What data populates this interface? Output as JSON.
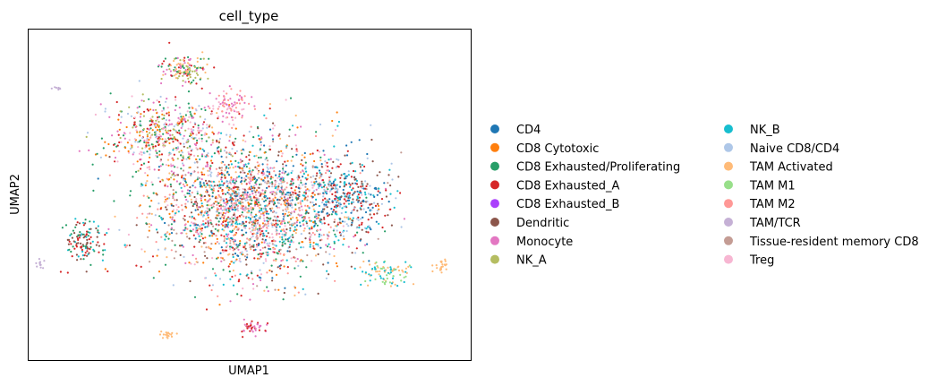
{
  "chart_data": {
    "type": "scatter",
    "title": "cell_type",
    "xlabel": "UMAP1",
    "ylabel": "UMAP2",
    "xticks": [],
    "yticks": [],
    "grid": false,
    "legend_placement": "right, two columns",
    "xlim": [
      -8,
      10
    ],
    "ylim": [
      -6,
      8
    ],
    "categories": [
      {
        "name": "CD4",
        "color": "#1f77b4"
      },
      {
        "name": "CD8 Cytotoxic",
        "color": "#ff7f0e"
      },
      {
        "name": "CD8 Exhausted/Proliferating",
        "color": "#279e68"
      },
      {
        "name": "CD8 Exhausted_A",
        "color": "#d62728"
      },
      {
        "name": "CD8 Exhausted_B",
        "color": "#aa40fc"
      },
      {
        "name": "Dendritic",
        "color": "#8c564b"
      },
      {
        "name": "Monocyte",
        "color": "#e377c2"
      },
      {
        "name": "NK_A",
        "color": "#b5bd61"
      },
      {
        "name": "NK_B",
        "color": "#17becf"
      },
      {
        "name": "Naive CD8/CD4",
        "color": "#aec7e8"
      },
      {
        "name": "TAM Activated",
        "color": "#ffbb78"
      },
      {
        "name": "TAM M1",
        "color": "#98df8a"
      },
      {
        "name": "TAM M2",
        "color": "#ff9896"
      },
      {
        "name": "TAM/TCR",
        "color": "#c5b0d5"
      },
      {
        "name": "Tissue-resident memory CD8",
        "color": "#c49c94"
      },
      {
        "name": "Treg",
        "color": "#f7b6d2"
      }
    ]
  }
}
